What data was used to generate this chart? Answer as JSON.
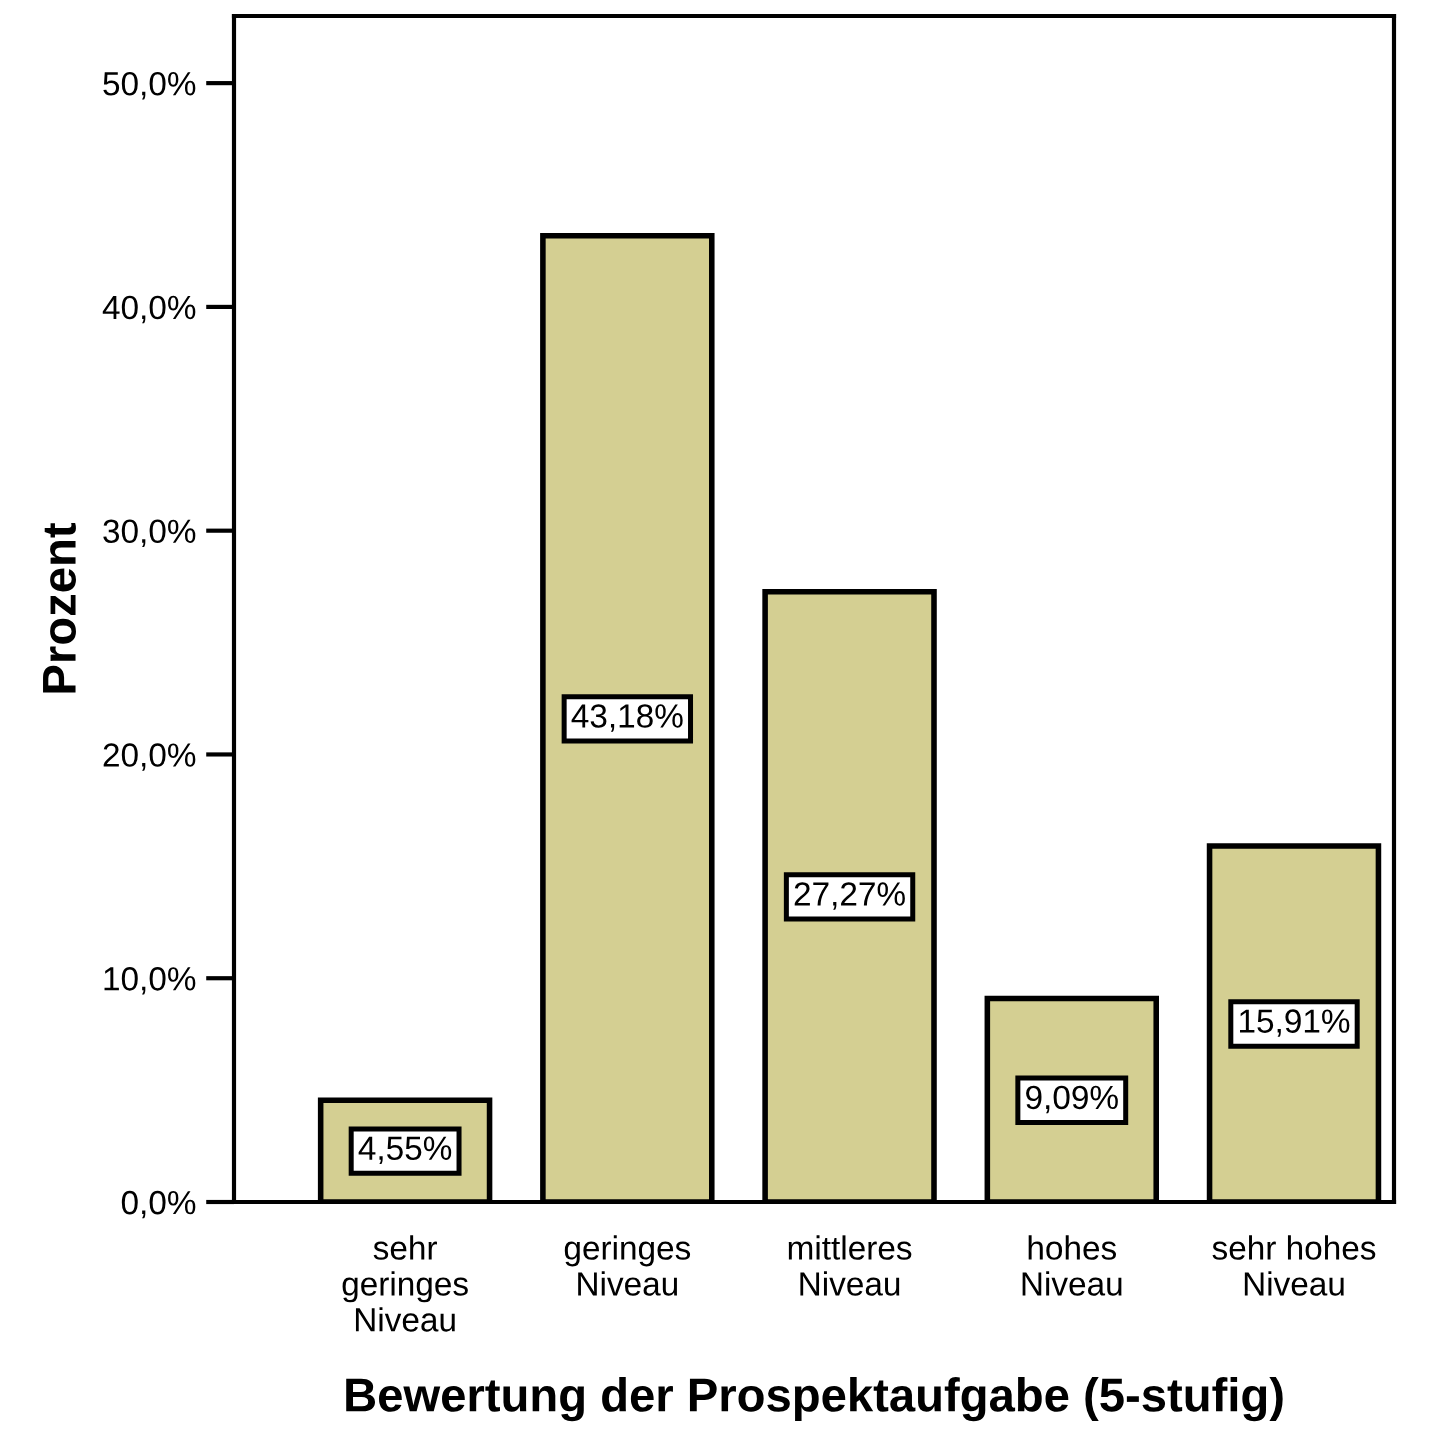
{
  "chart_data": {
    "type": "bar",
    "xlabel": "Bewertung der Prospektaufgabe (5-stufig)",
    "ylabel": "Prozent",
    "categories": [
      "sehr\ngeringes\nNiveau",
      "geringes\nNiveau",
      "mittleres\nNiveau",
      "hohes\nNiveau",
      "sehr hohes\nNiveau"
    ],
    "values": [
      4.55,
      43.18,
      27.27,
      9.09,
      15.91
    ],
    "value_labels": [
      "4,55%",
      "43,18%",
      "27,27%",
      "9,09%",
      "15,91%"
    ],
    "color": "#d4cf92",
    "ylim": [
      0,
      53
    ],
    "yticks": [
      {
        "value": 0,
        "label": "0,0%"
      },
      {
        "value": 10,
        "label": "10,0%"
      },
      {
        "value": 20,
        "label": "20,0%"
      },
      {
        "value": 30,
        "label": "30,0%"
      },
      {
        "value": 40,
        "label": "40,0%"
      },
      {
        "value": 50,
        "label": "50,0%"
      }
    ],
    "grid": false,
    "legend": false
  }
}
